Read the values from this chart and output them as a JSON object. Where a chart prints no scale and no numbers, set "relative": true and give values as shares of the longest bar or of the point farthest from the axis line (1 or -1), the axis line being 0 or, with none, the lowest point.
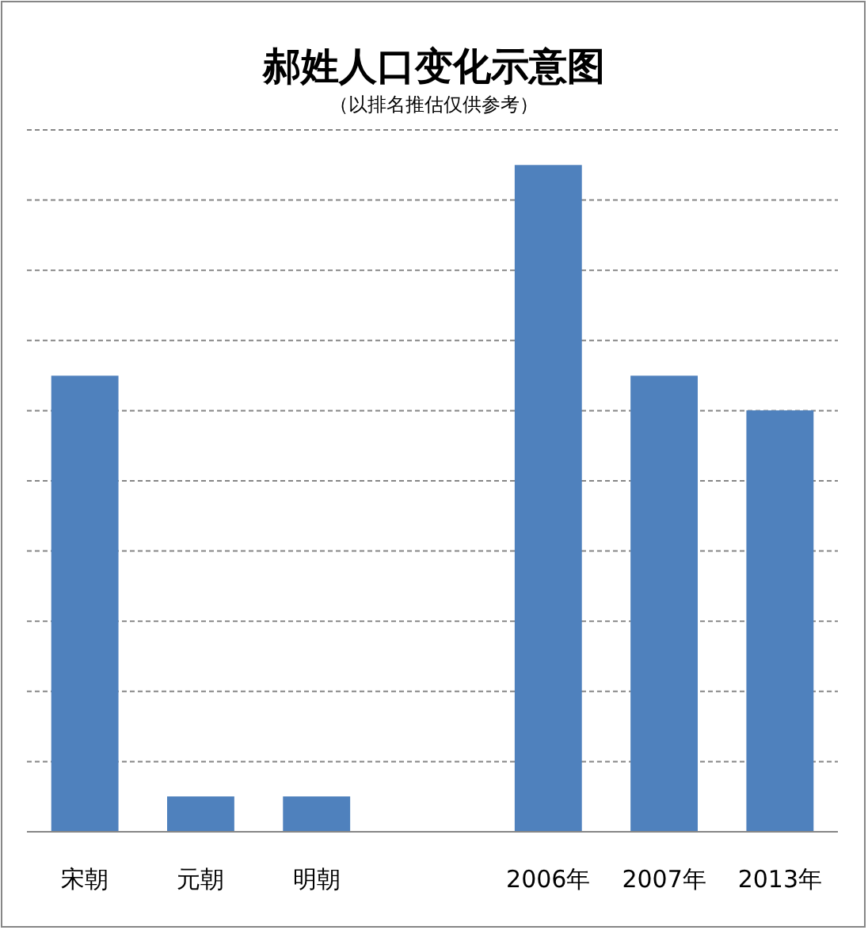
{
  "chart_data": {
    "type": "bar",
    "title": "郝姓人口变化示意图",
    "subtitle": "（以排名推估仅供参考）",
    "categories": [
      "宋朝",
      "元朝",
      "明朝",
      null,
      "2006年",
      "2007年",
      "2013年"
    ],
    "values": [
      0.684,
      0.053,
      0.053,
      null,
      1,
      0.684,
      0.632
    ],
    "color": "#4f81bd",
    "relative": true,
    "grid": "y"
  }
}
